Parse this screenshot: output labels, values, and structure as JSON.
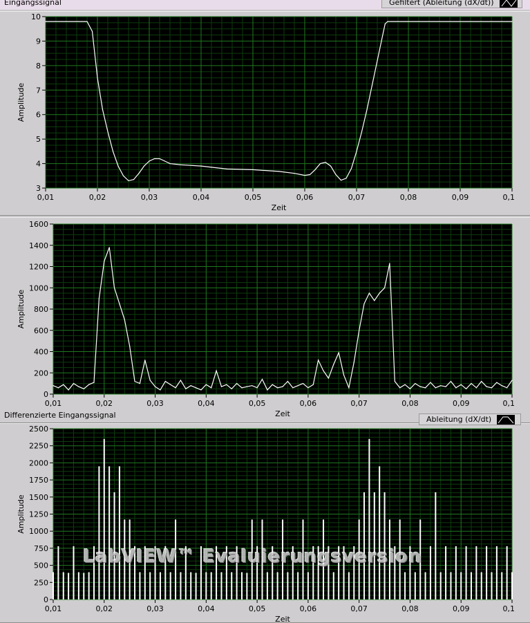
{
  "chart_data": [
    {
      "type": "line",
      "title": "Eingangssignal",
      "legend": "Gefiltert (Ableitung (dX/dt))",
      "xlabel": "Zeit",
      "ylabel": "Amplitude",
      "xlim": [
        0.01,
        0.1
      ],
      "ylim": [
        3,
        10
      ],
      "xticks": [
        "0,01",
        "0,02",
        "0,03",
        "0,04",
        "0,05",
        "0,06",
        "0,07",
        "0,08",
        "0,09",
        "0,1"
      ],
      "yticks": [
        "3",
        "4",
        "5",
        "6",
        "7",
        "8",
        "9",
        "10"
      ],
      "grid": true,
      "colors": {
        "plot_bg": "#000000",
        "grid_major": "#1f7a1f",
        "grid_minor": "#0d3d0d",
        "line": "#ffffff"
      },
      "points": [
        [
          0.01,
          9.8
        ],
        [
          0.018,
          9.8
        ],
        [
          0.019,
          9.4
        ],
        [
          0.02,
          7.5
        ],
        [
          0.021,
          6.2
        ],
        [
          0.022,
          5.3
        ],
        [
          0.023,
          4.5
        ],
        [
          0.024,
          3.9
        ],
        [
          0.025,
          3.5
        ],
        [
          0.026,
          3.3
        ],
        [
          0.027,
          3.35
        ],
        [
          0.028,
          3.6
        ],
        [
          0.029,
          3.9
        ],
        [
          0.03,
          4.1
        ],
        [
          0.031,
          4.2
        ],
        [
          0.032,
          4.2
        ],
        [
          0.033,
          4.1
        ],
        [
          0.034,
          4.0
        ],
        [
          0.036,
          3.95
        ],
        [
          0.04,
          3.9
        ],
        [
          0.042,
          3.85
        ],
        [
          0.045,
          3.78
        ],
        [
          0.05,
          3.75
        ],
        [
          0.055,
          3.68
        ],
        [
          0.058,
          3.6
        ],
        [
          0.06,
          3.52
        ],
        [
          0.061,
          3.55
        ],
        [
          0.062,
          3.75
        ],
        [
          0.063,
          4.0
        ],
        [
          0.064,
          4.05
        ],
        [
          0.065,
          3.9
        ],
        [
          0.066,
          3.55
        ],
        [
          0.067,
          3.32
        ],
        [
          0.068,
          3.4
        ],
        [
          0.069,
          3.8
        ],
        [
          0.07,
          4.5
        ],
        [
          0.071,
          5.3
        ],
        [
          0.072,
          6.2
        ],
        [
          0.073,
          7.2
        ],
        [
          0.074,
          8.2
        ],
        [
          0.075,
          9.2
        ],
        [
          0.0755,
          9.7
        ],
        [
          0.076,
          9.8
        ],
        [
          0.1,
          9.8
        ]
      ]
    },
    {
      "type": "line",
      "xlabel": "Zeit",
      "ylabel": "Amplitude",
      "xlim": [
        0.01,
        0.1
      ],
      "ylim": [
        0,
        1600
      ],
      "xticks": [
        "0,01",
        "0,02",
        "0,03",
        "0,04",
        "0,05",
        "0,06",
        "0,07",
        "0,08",
        "0,09",
        "0,1"
      ],
      "yticks": [
        "0",
        "200",
        "400",
        "600",
        "800",
        "1000",
        "1200",
        "1400",
        "1600"
      ],
      "grid": true,
      "colors": {
        "plot_bg": "#000000",
        "grid_major": "#1f7a1f",
        "grid_minor": "#0d3d0d",
        "line": "#ffffff"
      },
      "points": [
        [
          0.01,
          80
        ],
        [
          0.011,
          60
        ],
        [
          0.012,
          90
        ],
        [
          0.013,
          40
        ],
        [
          0.014,
          100
        ],
        [
          0.015,
          70
        ],
        [
          0.016,
          50
        ],
        [
          0.017,
          90
        ],
        [
          0.018,
          110
        ],
        [
          0.019,
          900
        ],
        [
          0.02,
          1250
        ],
        [
          0.021,
          1380
        ],
        [
          0.022,
          1000
        ],
        [
          0.023,
          850
        ],
        [
          0.024,
          700
        ],
        [
          0.025,
          450
        ],
        [
          0.026,
          120
        ],
        [
          0.027,
          100
        ],
        [
          0.028,
          320
        ],
        [
          0.029,
          130
        ],
        [
          0.03,
          70
        ],
        [
          0.031,
          40
        ],
        [
          0.032,
          120
        ],
        [
          0.033,
          90
        ],
        [
          0.034,
          60
        ],
        [
          0.035,
          130
        ],
        [
          0.036,
          50
        ],
        [
          0.037,
          80
        ],
        [
          0.038,
          60
        ],
        [
          0.039,
          40
        ],
        [
          0.04,
          90
        ],
        [
          0.041,
          60
        ],
        [
          0.042,
          220
        ],
        [
          0.043,
          70
        ],
        [
          0.044,
          90
        ],
        [
          0.045,
          50
        ],
        [
          0.046,
          100
        ],
        [
          0.047,
          60
        ],
        [
          0.048,
          70
        ],
        [
          0.049,
          80
        ],
        [
          0.05,
          60
        ],
        [
          0.051,
          140
        ],
        [
          0.052,
          40
        ],
        [
          0.053,
          90
        ],
        [
          0.054,
          60
        ],
        [
          0.055,
          70
        ],
        [
          0.056,
          120
        ],
        [
          0.057,
          60
        ],
        [
          0.058,
          80
        ],
        [
          0.059,
          100
        ],
        [
          0.06,
          60
        ],
        [
          0.061,
          90
        ],
        [
          0.062,
          320
        ],
        [
          0.063,
          220
        ],
        [
          0.064,
          150
        ],
        [
          0.065,
          280
        ],
        [
          0.066,
          390
        ],
        [
          0.067,
          180
        ],
        [
          0.068,
          60
        ],
        [
          0.069,
          300
        ],
        [
          0.07,
          600
        ],
        [
          0.071,
          850
        ],
        [
          0.072,
          950
        ],
        [
          0.073,
          880
        ],
        [
          0.074,
          950
        ],
        [
          0.075,
          1000
        ],
        [
          0.076,
          1230
        ],
        [
          0.077,
          120
        ],
        [
          0.078,
          60
        ],
        [
          0.079,
          90
        ],
        [
          0.08,
          50
        ],
        [
          0.081,
          100
        ],
        [
          0.082,
          70
        ],
        [
          0.083,
          60
        ],
        [
          0.084,
          110
        ],
        [
          0.085,
          60
        ],
        [
          0.086,
          80
        ],
        [
          0.087,
          70
        ],
        [
          0.088,
          120
        ],
        [
          0.089,
          60
        ],
        [
          0.09,
          90
        ],
        [
          0.091,
          50
        ],
        [
          0.092,
          100
        ],
        [
          0.093,
          60
        ],
        [
          0.094,
          120
        ],
        [
          0.095,
          70
        ],
        [
          0.096,
          60
        ],
        [
          0.097,
          110
        ],
        [
          0.098,
          80
        ],
        [
          0.099,
          60
        ],
        [
          0.1,
          130
        ]
      ]
    },
    {
      "type": "bar",
      "title": "Differenzierte Eingangssignal",
      "legend": "Ableitung (dX/dt)",
      "xlabel": "Zeit",
      "ylabel": "Amplitude",
      "xlim": [
        0.01,
        0.1
      ],
      "ylim": [
        0,
        2500
      ],
      "xticks": [
        "0,01",
        "0,02",
        "0,03",
        "0,04",
        "0,05",
        "0,06",
        "0,07",
        "0,08",
        "0,09",
        "0,1"
      ],
      "yticks": [
        "0",
        "250",
        "500",
        "750",
        "1000",
        "1250",
        "1500",
        "1750",
        "2000",
        "2250",
        "2500"
      ],
      "grid": true,
      "colors": {
        "plot_bg": "#000000",
        "grid_major": "#1f7a1f",
        "grid_minor": "#0d3d0d",
        "line": "#ffffff"
      },
      "points": [
        [
          0.01,
          400
        ],
        [
          0.011,
          780
        ],
        [
          0.012,
          400
        ],
        [
          0.013,
          390
        ],
        [
          0.014,
          780
        ],
        [
          0.015,
          400
        ],
        [
          0.016,
          390
        ],
        [
          0.017,
          400
        ],
        [
          0.018,
          780
        ],
        [
          0.019,
          1950
        ],
        [
          0.02,
          2350
        ],
        [
          0.021,
          1950
        ],
        [
          0.022,
          1570
        ],
        [
          0.023,
          1950
        ],
        [
          0.024,
          1170
        ],
        [
          0.025,
          1170
        ],
        [
          0.026,
          780
        ],
        [
          0.027,
          400
        ],
        [
          0.028,
          780
        ],
        [
          0.029,
          400
        ],
        [
          0.03,
          780
        ],
        [
          0.031,
          400
        ],
        [
          0.032,
          780
        ],
        [
          0.033,
          400
        ],
        [
          0.034,
          1170
        ],
        [
          0.035,
          400
        ],
        [
          0.036,
          780
        ],
        [
          0.037,
          400
        ],
        [
          0.038,
          390
        ],
        [
          0.039,
          780
        ],
        [
          0.04,
          400
        ],
        [
          0.041,
          400
        ],
        [
          0.042,
          780
        ],
        [
          0.043,
          400
        ],
        [
          0.044,
          780
        ],
        [
          0.045,
          400
        ],
        [
          0.046,
          780
        ],
        [
          0.047,
          400
        ],
        [
          0.048,
          390
        ],
        [
          0.049,
          1170
        ],
        [
          0.05,
          780
        ],
        [
          0.051,
          1170
        ],
        [
          0.052,
          400
        ],
        [
          0.053,
          780
        ],
        [
          0.054,
          400
        ],
        [
          0.055,
          1170
        ],
        [
          0.056,
          400
        ],
        [
          0.057,
          780
        ],
        [
          0.058,
          400
        ],
        [
          0.059,
          1170
        ],
        [
          0.06,
          400
        ],
        [
          0.061,
          780
        ],
        [
          0.062,
          780
        ],
        [
          0.063,
          1170
        ],
        [
          0.064,
          780
        ],
        [
          0.065,
          400
        ],
        [
          0.066,
          780
        ],
        [
          0.067,
          780
        ],
        [
          0.068,
          400
        ],
        [
          0.069,
          780
        ],
        [
          0.07,
          1170
        ],
        [
          0.071,
          1570
        ],
        [
          0.072,
          2350
        ],
        [
          0.073,
          1570
        ],
        [
          0.074,
          1950
        ],
        [
          0.075,
          1570
        ],
        [
          0.076,
          1170
        ],
        [
          0.077,
          780
        ],
        [
          0.078,
          1170
        ],
        [
          0.079,
          400
        ],
        [
          0.08,
          780
        ],
        [
          0.081,
          400
        ],
        [
          0.082,
          1170
        ],
        [
          0.083,
          400
        ],
        [
          0.084,
          780
        ],
        [
          0.085,
          1570
        ],
        [
          0.086,
          400
        ],
        [
          0.087,
          780
        ],
        [
          0.088,
          400
        ],
        [
          0.089,
          780
        ],
        [
          0.09,
          400
        ],
        [
          0.091,
          780
        ],
        [
          0.092,
          400
        ],
        [
          0.093,
          780
        ],
        [
          0.094,
          400
        ],
        [
          0.095,
          780
        ],
        [
          0.096,
          400
        ],
        [
          0.097,
          780
        ],
        [
          0.098,
          400
        ],
        [
          0.099,
          780
        ],
        [
          0.1,
          400
        ]
      ]
    }
  ],
  "watermark": "LabVIEW™ Evaluierungsversion"
}
